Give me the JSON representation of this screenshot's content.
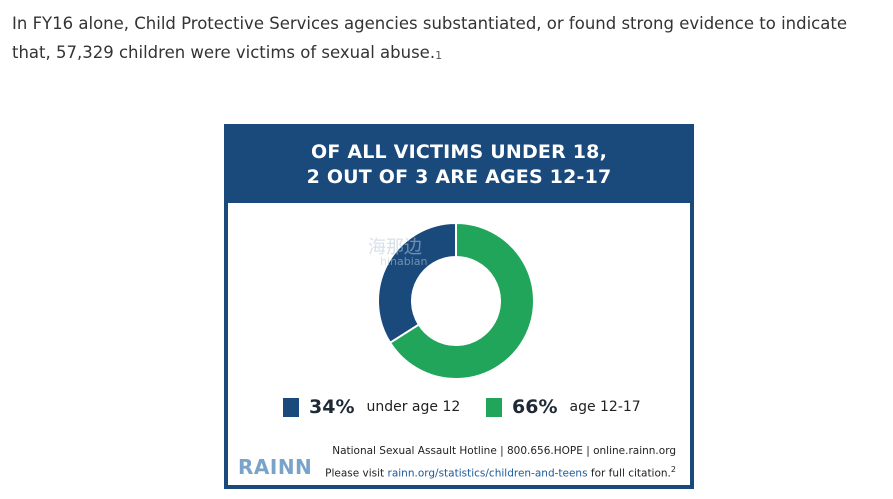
{
  "article": {
    "text": "In FY16 alone, Child Protective Services agencies substantiated, or found strong evidence to indicate that, 57,329 children were victims of sexual abuse.",
    "footnote": "1"
  },
  "infographic": {
    "header_line1": "OF ALL VICTIMS UNDER 18,",
    "header_line2": "2 OUT OF 3 ARE AGES 12-17",
    "hotline": "National Sexual Assault Hotline | 800.656.HOPE | online.rainn.org",
    "citation_prefix": "Please visit ",
    "citation_link": "rainn.org/statistics/children-and-teens",
    "citation_suffix": " for full citation.",
    "citation_footnote": "2",
    "logo": "RAINN",
    "watermark_cn": "海那边",
    "watermark_en": "hinabian",
    "colors": {
      "header": "#1a4a7c",
      "under12": "#1a4a7c",
      "age12_17": "#21a55a"
    }
  },
  "chart_data": {
    "type": "pie",
    "title": "OF ALL VICTIMS UNDER 18, 2 OUT OF 3 ARE AGES 12-17",
    "categories": [
      "under age 12",
      "age 12-17"
    ],
    "values": [
      34,
      66
    ],
    "value_labels": [
      "34%",
      "66%"
    ],
    "colors": [
      "#1a4a7c",
      "#21a55a"
    ],
    "donut": true
  }
}
